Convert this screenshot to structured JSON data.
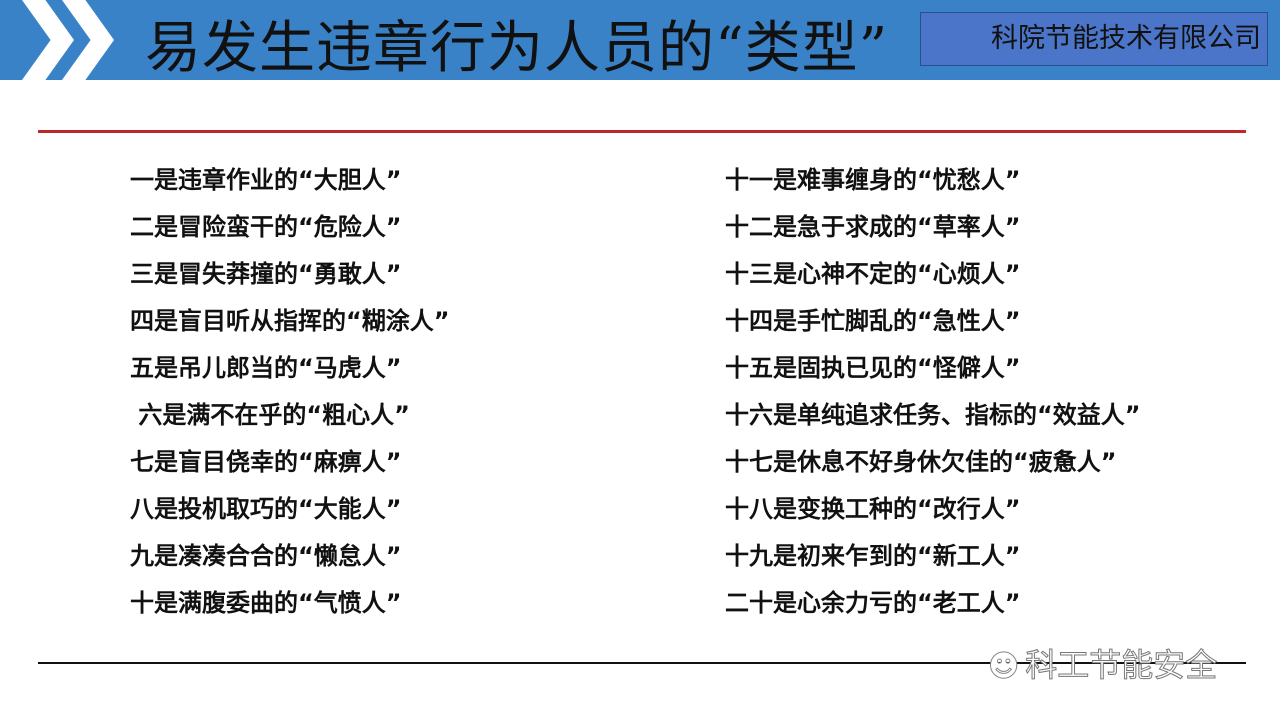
{
  "header": {
    "title": "易发生违章行为人员的“类型”",
    "company": "科院节能技术有限公司",
    "bg_color": "#3a82c8"
  },
  "left_items": [
    "一是违章作业的“大胆人”",
    "二是冒险蛮干的“危险人”",
    "三是冒失莽撞的“勇敢人”",
    "四是盲目听从指挥的“糊涂人”",
    "五是吊儿郎当的“马虎人”",
    " 六是满不在乎的“粗心人”",
    "七是盲目侥幸的“麻痹人”",
    "八是投机取巧的“大能人”",
    "九是凑凑合合的“懒怠人”",
    "十是满腹委曲的“气愤人”"
  ],
  "right_items": [
    "十一是难事缠身的“忧愁人”",
    "十二是急于求成的“草率人”",
    "十三是心神不定的“心烦人”",
    "十四是手忙脚乱的“急性人”",
    "十五是固执已见的“怪僻人”",
    "十六是单纯追求任务、指标的“效益人”",
    "十七是休息不好身休欠佳的“疲惫人”",
    "十八是变换工种的“改行人”",
    "十九是初来乍到的“新工人”",
    "二十是心余力亏的“老工人”"
  ],
  "watermark": {
    "icon": "wechat-icon",
    "text": "科工节能安全"
  },
  "accent_color": "#c0272d"
}
